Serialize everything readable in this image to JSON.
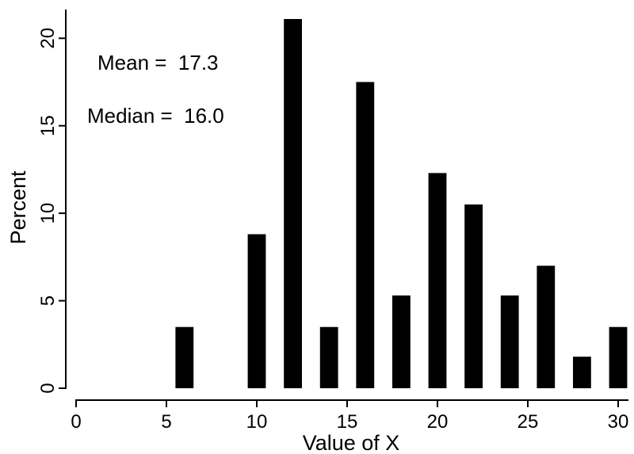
{
  "chart_data": {
    "type": "bar",
    "xlabel": "Value of X",
    "ylabel": "Percent",
    "xlim": [
      0,
      30
    ],
    "ylim": [
      0,
      21.1
    ],
    "x_ticks": [
      0,
      5,
      10,
      15,
      20,
      25,
      30
    ],
    "y_ticks": [
      0,
      5,
      10,
      15,
      20
    ],
    "bar_width": 1,
    "grid": false,
    "legend": "none",
    "bar_color": "#000000",
    "bars": [
      {
        "x": 6,
        "value": 3.5
      },
      {
        "x": 10,
        "value": 8.8
      },
      {
        "x": 12,
        "value": 21.1
      },
      {
        "x": 14,
        "value": 3.5
      },
      {
        "x": 16,
        "value": 17.5
      },
      {
        "x": 18,
        "value": 5.3
      },
      {
        "x": 20,
        "value": 12.3
      },
      {
        "x": 22,
        "value": 10.5
      },
      {
        "x": 24,
        "value": 5.3
      },
      {
        "x": 26,
        "value": 7.0
      },
      {
        "x": 28,
        "value": 1.8
      },
      {
        "x": 30,
        "value": 3.5
      }
    ],
    "annotations": [
      {
        "id": "mean",
        "text": "Mean =  17.3"
      },
      {
        "id": "median",
        "text": "Median =  16.0"
      }
    ]
  }
}
